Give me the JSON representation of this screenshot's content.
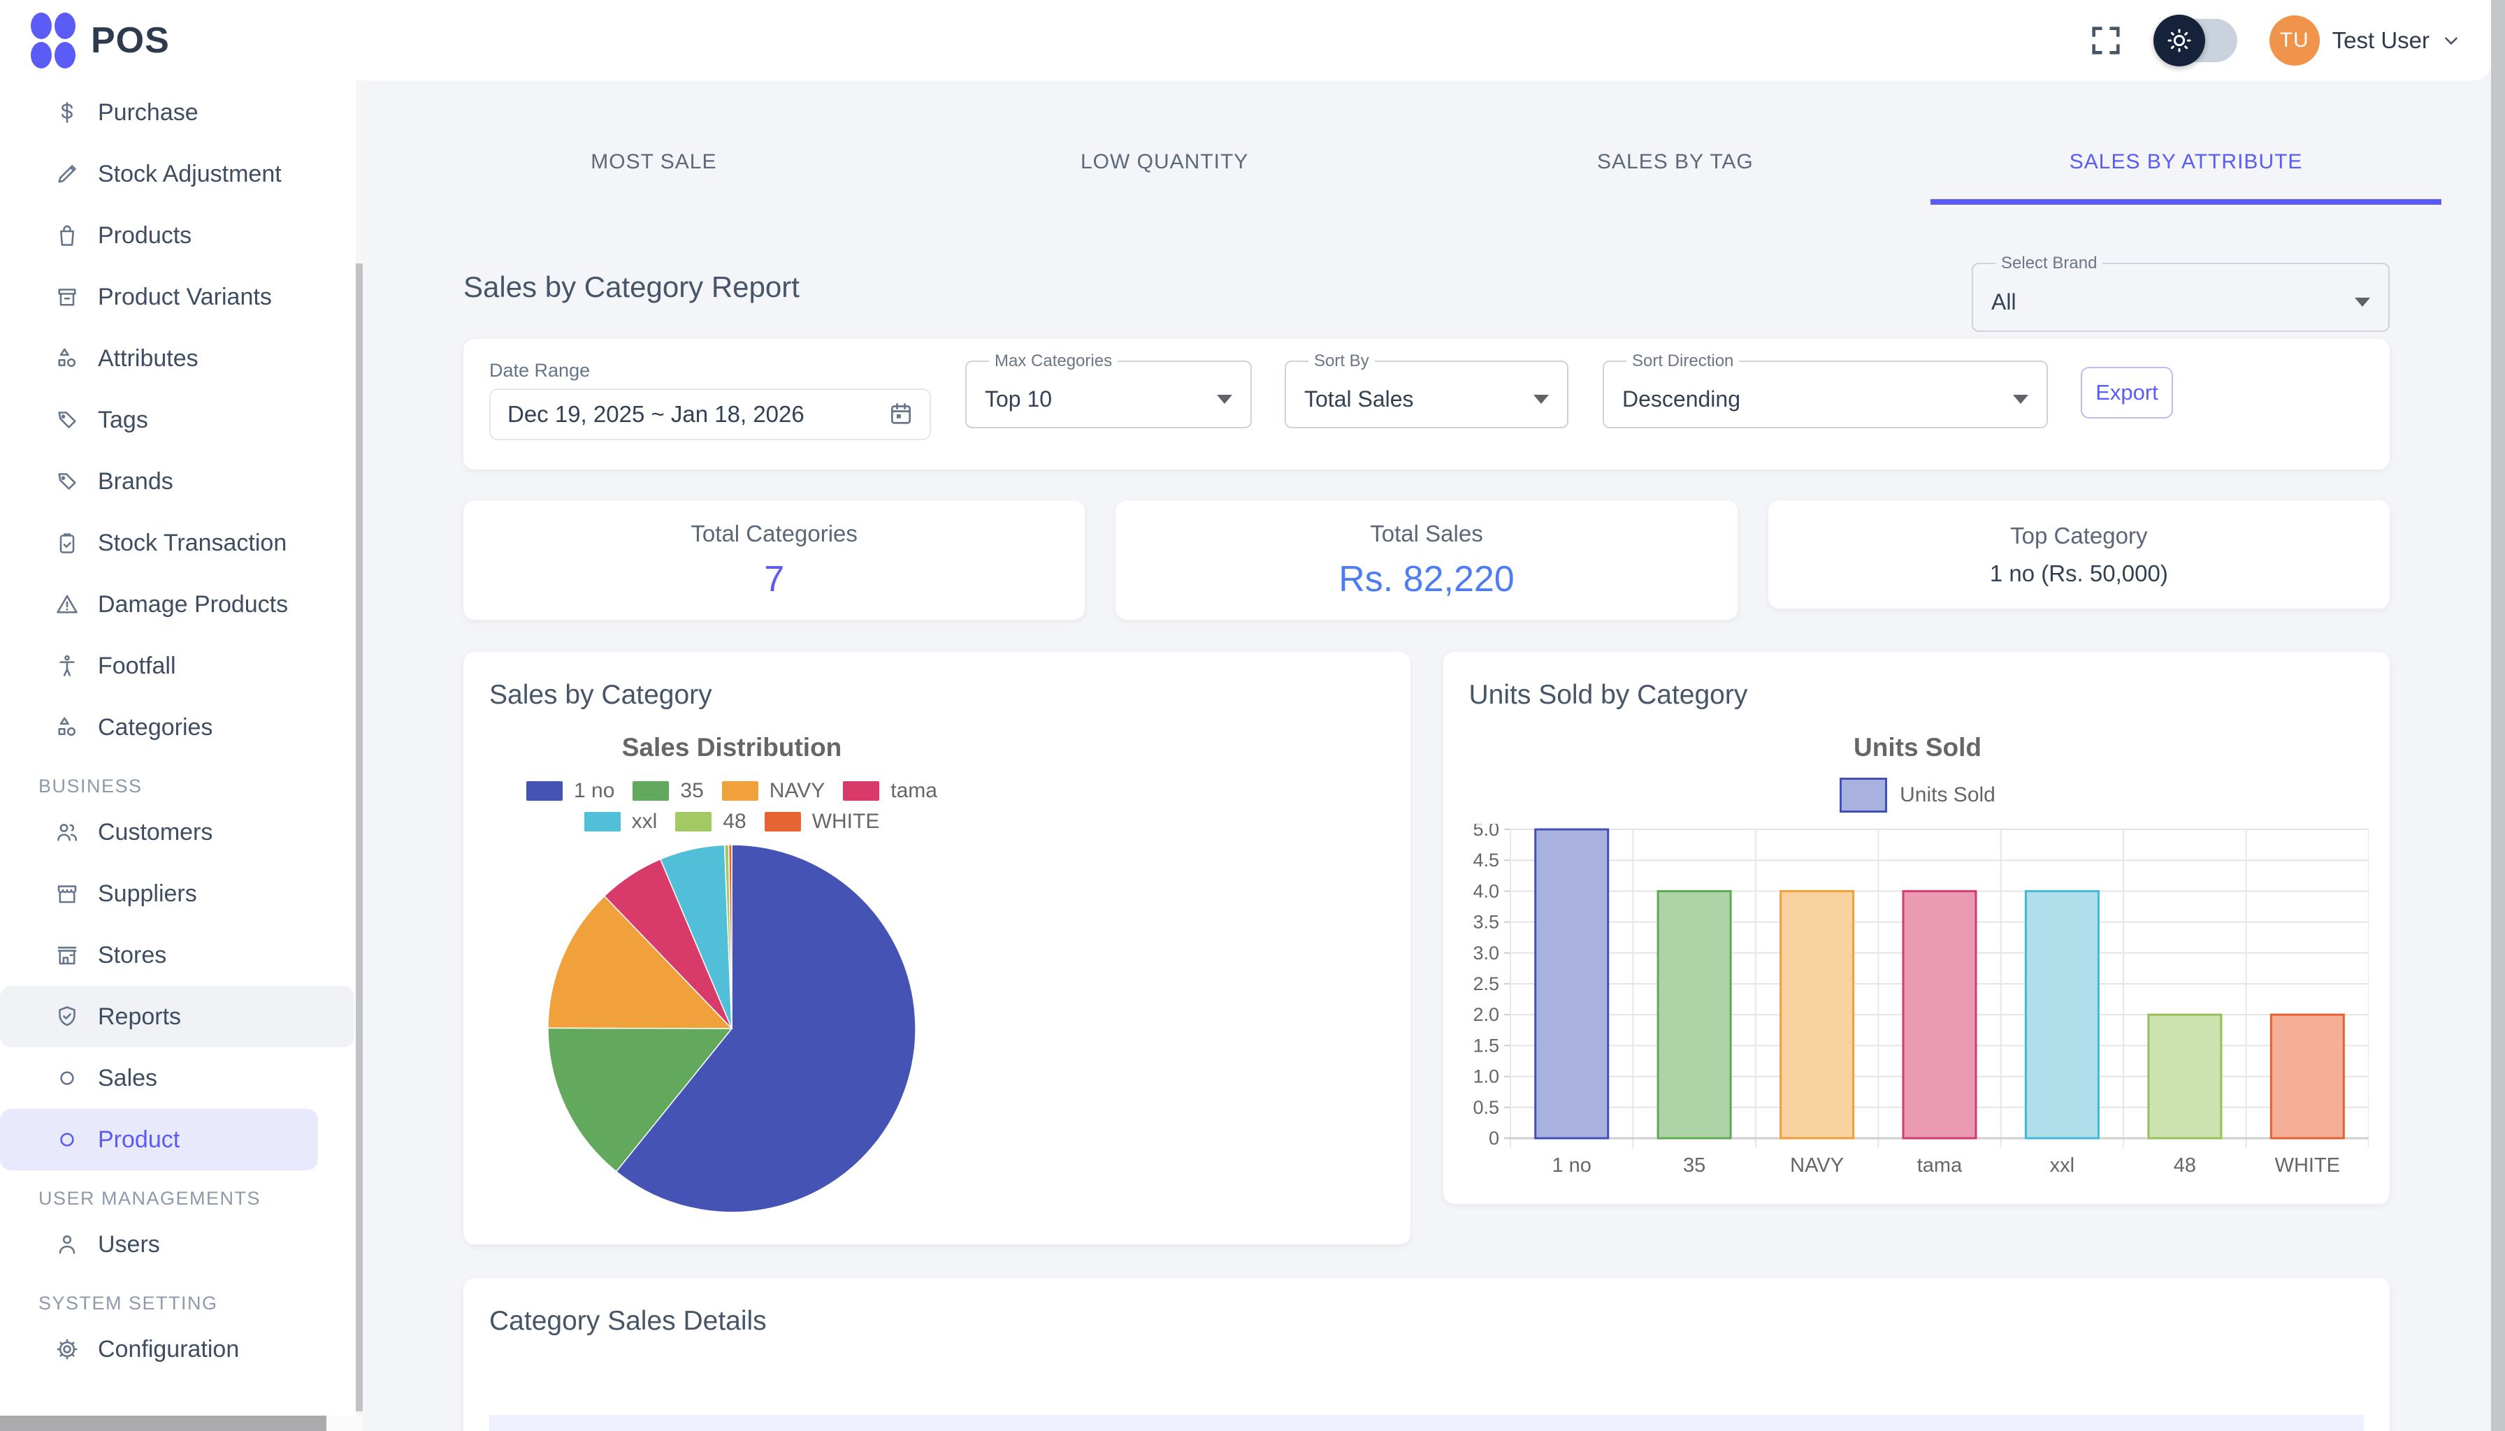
{
  "header": {
    "app_name": "POS",
    "user_initials": "TU",
    "user_name": "Test User"
  },
  "sidebar": {
    "entries": [
      {
        "type": "item",
        "icon": "dollar",
        "label": "Purchase"
      },
      {
        "type": "item",
        "icon": "pencil",
        "label": "Stock Adjustment"
      },
      {
        "type": "item",
        "icon": "shopping-bag",
        "label": "Products"
      },
      {
        "type": "item",
        "icon": "archive-box",
        "label": "Product Variants"
      },
      {
        "type": "item",
        "icon": "shapes",
        "label": "Attributes"
      },
      {
        "type": "item",
        "icon": "tag",
        "label": "Tags"
      },
      {
        "type": "item",
        "icon": "tag",
        "label": "Brands"
      },
      {
        "type": "item",
        "icon": "clipboard-check",
        "label": "Stock Transaction"
      },
      {
        "type": "item",
        "icon": "alert-triangle",
        "label": "Damage Products"
      },
      {
        "type": "item",
        "icon": "person-standing",
        "label": "Footfall"
      },
      {
        "type": "item",
        "icon": "shapes",
        "label": "Categories"
      },
      {
        "type": "section",
        "label": "BUSINESS"
      },
      {
        "type": "item",
        "icon": "users",
        "label": "Customers"
      },
      {
        "type": "item",
        "icon": "storefront",
        "label": "Suppliers"
      },
      {
        "type": "item",
        "icon": "store",
        "label": "Stores"
      },
      {
        "type": "item",
        "icon": "shield-check",
        "label": "Reports",
        "highlight": "hover"
      },
      {
        "type": "subitem",
        "icon": "circle",
        "label": "Sales"
      },
      {
        "type": "subitem",
        "icon": "circle",
        "label": "Product",
        "highlight": "active"
      },
      {
        "type": "section",
        "label": "USER MANAGEMENTS"
      },
      {
        "type": "item",
        "icon": "user",
        "label": "Users"
      },
      {
        "type": "section",
        "label": "SYSTEM SETTING"
      },
      {
        "type": "item",
        "icon": "gear",
        "label": "Configuration"
      }
    ]
  },
  "tabs": {
    "items": [
      "MOST SALE",
      "LOW QUANTITY",
      "SALES BY TAG",
      "SALES BY ATTRIBUTE"
    ],
    "active_index": 3
  },
  "report": {
    "title": "Sales by Category Report",
    "select_brand": {
      "label": "Select Brand",
      "value": "All"
    },
    "filters": {
      "date_range": {
        "label": "Date Range",
        "value": "Dec 19, 2025 ~ Jan 18, 2026"
      },
      "max_categories": {
        "label": "Max Categories",
        "value": "Top 10"
      },
      "sort_by": {
        "label": "Sort By",
        "value": "Total Sales"
      },
      "sort_direction": {
        "label": "Sort Direction",
        "value": "Descending"
      },
      "export_label": "Export"
    }
  },
  "summary_cards": [
    {
      "label": "Total Categories",
      "value": "7",
      "value_style": "big",
      "value_color": "#5f5af0"
    },
    {
      "label": "Total Sales",
      "value": "Rs. 82,220",
      "value_style": "big",
      "value_color": "#4d7cf3"
    },
    {
      "label": "Top Category",
      "value": "1 no (Rs. 50,000)",
      "value_style": "small",
      "value_color": "#334155"
    }
  ],
  "charts": {
    "sales_by_category_title": "Sales by Category",
    "units_sold_title": "Units Sold by Category"
  },
  "chart_data": [
    {
      "type": "pie",
      "title": "Sales Distribution",
      "categories": [
        "1 no",
        "35",
        "NAVY",
        "tama",
        "xxl",
        "48",
        "WHITE"
      ],
      "values": [
        50000,
        11700,
        10500,
        4800,
        4700,
        300,
        220
      ],
      "colors": [
        "#4554b4",
        "#63a95d",
        "#f0a13c",
        "#d83a6a",
        "#51bfd8",
        "#a3c965",
        "#e66432"
      ],
      "legend_rows": [
        4,
        3
      ],
      "legend_position": "top"
    },
    {
      "type": "bar",
      "title": "Units Sold",
      "categories": [
        "1 no",
        "35",
        "NAVY",
        "tama",
        "xxl",
        "48",
        "WHITE"
      ],
      "series": [
        {
          "name": "Units Sold",
          "values": [
            5,
            4,
            4,
            4,
            4,
            2,
            2
          ]
        }
      ],
      "ylim": [
        0,
        5
      ],
      "ytick_step": 0.5,
      "ytick_labels": [
        "0",
        "0.5",
        "1.0",
        "1.5",
        "2.0",
        "2.5",
        "3.0",
        "3.5",
        "4.0",
        "4.5",
        "5.0"
      ],
      "bar_fill": [
        "#a9b1df",
        "#aed3a7",
        "#f8d2a0",
        "#ea9ab3",
        "#b0dfeb",
        "#cce2af",
        "#f5af97"
      ],
      "bar_border": [
        "#3f51b5",
        "#5fa857",
        "#f0a03a",
        "#d63a6e",
        "#45b8d2",
        "#95c257",
        "#e5602e"
      ],
      "grid": true,
      "legend_position": "top"
    }
  ],
  "details": {
    "title": "Category Sales Details"
  },
  "colors": {
    "accent_indigo": "#5b5bf5",
    "value_blue": "#4d7cf3",
    "avatar_orange": "#f0944c",
    "page_background": "#f4f5f8",
    "table_header_row": "#eef0fe"
  }
}
